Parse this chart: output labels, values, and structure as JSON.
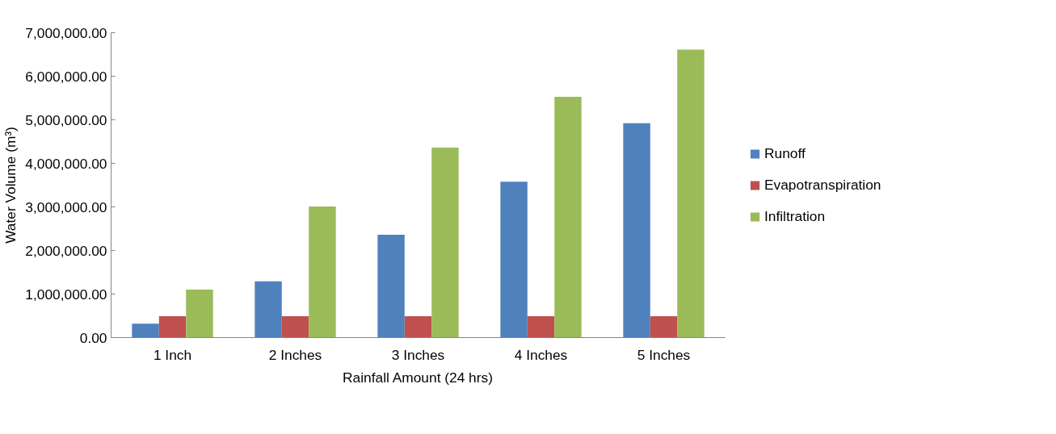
{
  "chart_data": {
    "type": "bar",
    "xlabel": "Rainfall Amount (24 hrs)",
    "ylabel": "Water Volume (m³)",
    "categories": [
      "1 Inch",
      "2 Inches",
      "3 Inches",
      "4 Inches",
      "5 Inches"
    ],
    "series": [
      {
        "name": "Runoff",
        "color": "#4f81bd",
        "values": [
          320000,
          1290000,
          2360000,
          3580000,
          4920000
        ]
      },
      {
        "name": "Evapotranspiration",
        "color": "#c0504d",
        "values": [
          490000,
          490000,
          490000,
          490000,
          490000
        ]
      },
      {
        "name": "Infiltration",
        "color": "#9bbb59",
        "values": [
          1100000,
          3010000,
          4360000,
          5530000,
          6610000
        ]
      }
    ],
    "ylim": [
      0,
      7000000
    ],
    "yticks": [
      {
        "value": 0,
        "label": "0.00"
      },
      {
        "value": 1000000,
        "label": "1,000,000.00"
      },
      {
        "value": 2000000,
        "label": "2,000,000.00"
      },
      {
        "value": 3000000,
        "label": "3,000,000.00"
      },
      {
        "value": 4000000,
        "label": "4,000,000.00"
      },
      {
        "value": 5000000,
        "label": "5,000,000.00"
      },
      {
        "value": 6000000,
        "label": "6,000,000.00"
      },
      {
        "value": 7000000,
        "label": "7,000,000.00"
      }
    ],
    "grid": false,
    "legend": "right"
  }
}
